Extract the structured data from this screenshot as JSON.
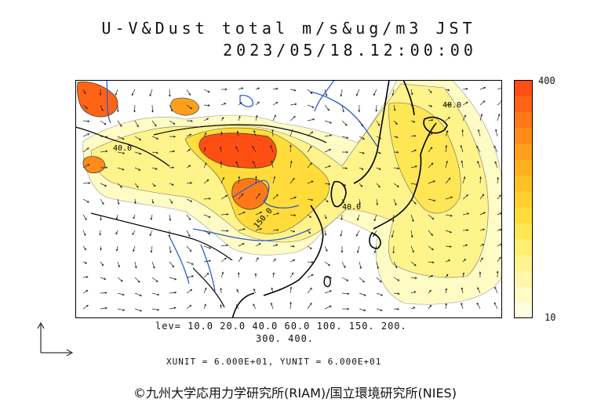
{
  "title": "U-V&Dust total m/s&ug/m3 JST",
  "datetime": "2023/05/18.12:00:00",
  "colorbar": {
    "max_label": "400",
    "min_label": "10",
    "colors": [
      "#fffde0",
      "#fffbc4",
      "#fff7a8",
      "#fff38c",
      "#ffee70",
      "#ffe655",
      "#ffdc3a",
      "#ffcf2e",
      "#ffc025",
      "#ffb01f",
      "#ff9f1c",
      "#ff8c1a",
      "#ff7818",
      "#ff6316",
      "#ff4e14"
    ]
  },
  "contour_labels": {
    "label_40_west": "40.0",
    "label_40_east": "40.0",
    "label_150": "150.0",
    "label_40_japan": "40.0"
  },
  "levels_line1": "lev= 10.0 20.0 40.0 60.0 100. 150. 200.",
  "levels_line2": "300. 400.",
  "units": "XUNIT = 6.000E+01, YUNIT = 6.000E+01",
  "copyright": "©九州大学応用力学研究所(RIAM)/国立環境研究所(NIES)"
}
